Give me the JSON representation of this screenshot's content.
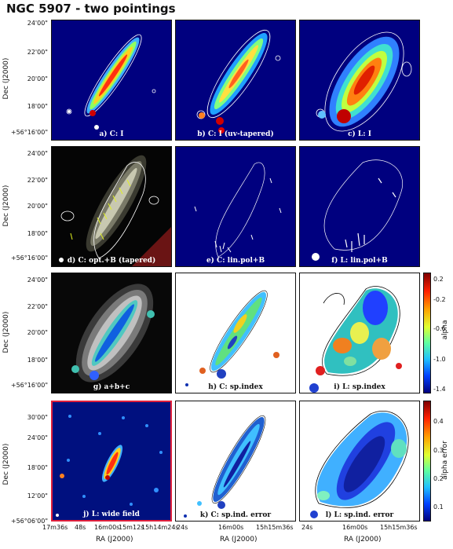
{
  "figure": {
    "title": "NGC 5907 - two pointings",
    "y_axis_label": "Dec (J2000)",
    "x_axis_label": "RA (J2000)",
    "rows": [
      {
        "yticks": [
          "24'00\"",
          "22'00\"",
          "20'00\"",
          "18'00\"",
          "+56°16'00\""
        ],
        "panels": [
          "a) C: I",
          "b) C: I (uv-tapered)",
          "c) L: I"
        ]
      },
      {
        "yticks": [
          "24'00\"",
          "22'00\"",
          "20'00\"",
          "18'00\"",
          "+56°16'00\""
        ],
        "panels": [
          "d) C: opt.+B (tapered)",
          "e) C: lin.pol+B",
          "f) L: lin.pol+B"
        ]
      },
      {
        "yticks": [
          "24'00\"",
          "22'00\"",
          "20'00\"",
          "18'00\"",
          "+56°16'00\""
        ],
        "panels": [
          "g) a+b+c",
          "h) C: sp.index",
          "i) L: sp.index"
        ]
      },
      {
        "yticks": [
          "30'00\"",
          "24'00\"",
          "18'00\"",
          "12'00\"",
          "+56°06'00\""
        ],
        "panels": [
          "j) L: wide field",
          "k) C: sp.ind. error",
          "l) L: sp.ind. error"
        ]
      }
    ],
    "xticks_col1": [
      "17m36s",
      "48s",
      "16m00s",
      "15m12s",
      "15h14m24s"
    ],
    "xticks_col2": [
      "24s",
      "16m00s",
      "15h15m36s"
    ],
    "xticks_col3": [
      "24s",
      "16m00s",
      "15h15m36s"
    ],
    "colorbar_alpha": {
      "label": "alpha",
      "ticks": [
        "0.2",
        "-0.2",
        "-0.6",
        "-1.0",
        "-1.4"
      ]
    },
    "colorbar_error": {
      "label": "alpha error",
      "ticks": [
        "0.4",
        "0.3",
        "0.2",
        "0.1"
      ]
    },
    "colors": {
      "map_background": "#00007f",
      "highlight_frame": "#e0203c",
      "contour": "#ffffff"
    }
  }
}
